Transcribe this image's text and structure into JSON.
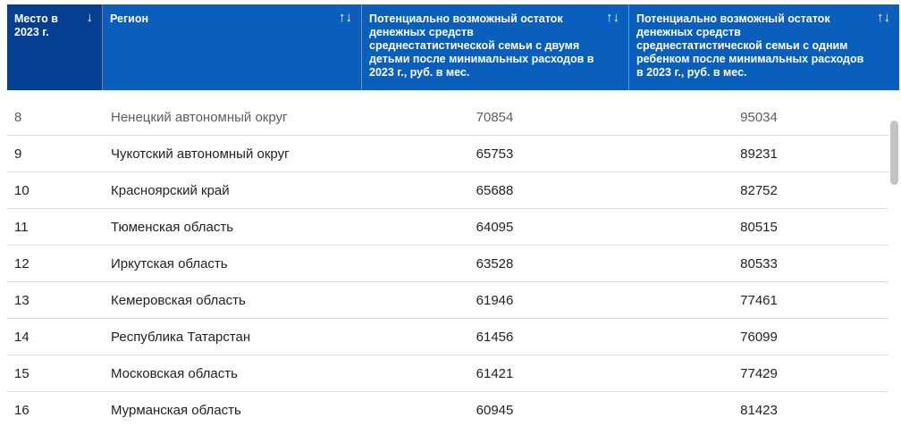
{
  "header": {
    "columns": [
      {
        "label": "Место в 2023 г.",
        "sort_icon": "↓"
      },
      {
        "label": "Регион",
        "sort_icon": "↑↓"
      },
      {
        "label": "Потенциально возможный остаток денежных средств среднестатистической семьи с двумя детьми после минимальных расходов в 2023 г., руб. в мес.",
        "sort_icon": "↑↓"
      },
      {
        "label": "Потенциально возможный остаток денежных средств среднестатистической семьи с одним ребенком после минимальных расходов в 2023 г., руб. в мес.",
        "sort_icon": "↑↓"
      }
    ]
  },
  "rows": [
    {
      "rank": "8",
      "region": "Ненецкий автономный округ",
      "two_children": "70854",
      "one_child": "95034"
    },
    {
      "rank": "9",
      "region": "Чукотский автономный округ",
      "two_children": "65753",
      "one_child": "89231"
    },
    {
      "rank": "10",
      "region": "Красноярский край",
      "two_children": "65688",
      "one_child": "82752"
    },
    {
      "rank": "11",
      "region": "Тюменская область",
      "two_children": "64095",
      "one_child": "80515"
    },
    {
      "rank": "12",
      "region": "Иркутская область",
      "two_children": "63528",
      "one_child": "80533"
    },
    {
      "rank": "13",
      "region": "Кемеровская область",
      "two_children": "61946",
      "one_child": "77461"
    },
    {
      "rank": "14",
      "region": "Республика Татарстан",
      "two_children": "61456",
      "one_child": "76099"
    },
    {
      "rank": "15",
      "region": "Московская область",
      "two_children": "61421",
      "one_child": "77429"
    },
    {
      "rank": "16",
      "region": "Мурманская область",
      "two_children": "60945",
      "one_child": "81423"
    }
  ],
  "colors": {
    "header_bg": "#0a5fbd",
    "header_active_bg": "#063f91",
    "row_border": "#dcdcdc"
  }
}
